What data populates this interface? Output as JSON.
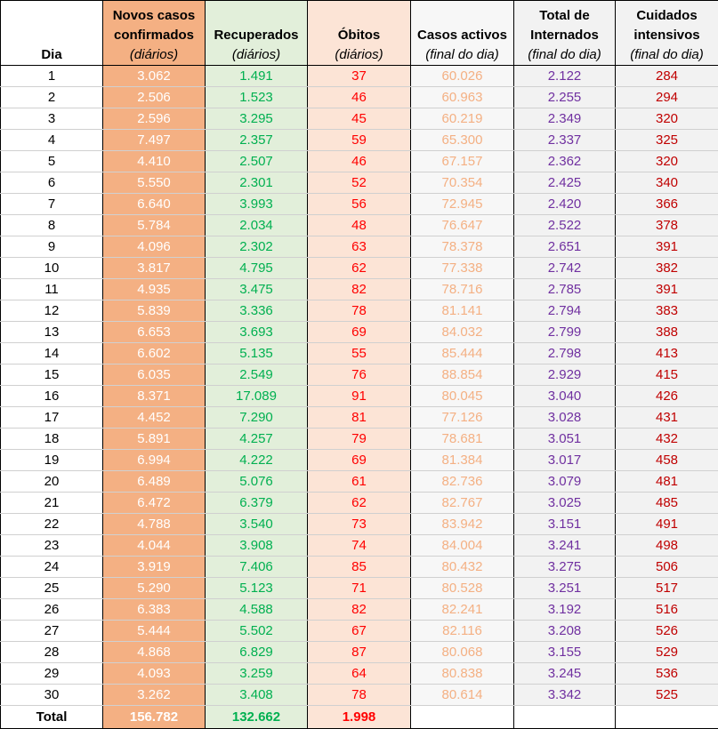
{
  "headers": {
    "dia": {
      "title": "Dia"
    },
    "novos": {
      "title_line1": "Novos casos",
      "title_line2": "confirmados",
      "subtitle": "(diários)"
    },
    "recup": {
      "title": "Recuperados",
      "subtitle": "(diários)"
    },
    "obitos": {
      "title": "Óbitos",
      "subtitle": "(diários)"
    },
    "activos": {
      "title": "Casos activos",
      "subtitle": "(final do dia)"
    },
    "intern": {
      "title_line1": "Total de",
      "title_line2": "Internados",
      "subtitle": "(final do dia)"
    },
    "cuid": {
      "title_line1": "Cuidados",
      "title_line2": "intensivos",
      "subtitle": "(final do dia)"
    }
  },
  "colors": {
    "novos_bg": "#f4b083",
    "recup_bg": "#e2efda",
    "recup_text": "#00b050",
    "obitos_bg": "#fce4d6",
    "obitos_text": "#ff0000",
    "activos_text": "#f4b083",
    "intern_text": "#7030a0",
    "cuid_text": "#c00000"
  },
  "rows": [
    {
      "dia": "1",
      "novos": "3.062",
      "recup": "1.491",
      "obitos": "37",
      "activos": "60.026",
      "intern": "2.122",
      "cuid": "284"
    },
    {
      "dia": "2",
      "novos": "2.506",
      "recup": "1.523",
      "obitos": "46",
      "activos": "60.963",
      "intern": "2.255",
      "cuid": "294"
    },
    {
      "dia": "3",
      "novos": "2.596",
      "recup": "3.295",
      "obitos": "45",
      "activos": "60.219",
      "intern": "2.349",
      "cuid": "320"
    },
    {
      "dia": "4",
      "novos": "7.497",
      "recup": "2.357",
      "obitos": "59",
      "activos": "65.300",
      "intern": "2.337",
      "cuid": "325"
    },
    {
      "dia": "5",
      "novos": "4.410",
      "recup": "2.507",
      "obitos": "46",
      "activos": "67.157",
      "intern": "2.362",
      "cuid": "320"
    },
    {
      "dia": "6",
      "novos": "5.550",
      "recup": "2.301",
      "obitos": "52",
      "activos": "70.354",
      "intern": "2.425",
      "cuid": "340"
    },
    {
      "dia": "7",
      "novos": "6.640",
      "recup": "3.993",
      "obitos": "56",
      "activos": "72.945",
      "intern": "2.420",
      "cuid": "366"
    },
    {
      "dia": "8",
      "novos": "5.784",
      "recup": "2.034",
      "obitos": "48",
      "activos": "76.647",
      "intern": "2.522",
      "cuid": "378"
    },
    {
      "dia": "9",
      "novos": "4.096",
      "recup": "2.302",
      "obitos": "63",
      "activos": "78.378",
      "intern": "2.651",
      "cuid": "391"
    },
    {
      "dia": "10",
      "novos": "3.817",
      "recup": "4.795",
      "obitos": "62",
      "activos": "77.338",
      "intern": "2.742",
      "cuid": "382"
    },
    {
      "dia": "11",
      "novos": "4.935",
      "recup": "3.475",
      "obitos": "82",
      "activos": "78.716",
      "intern": "2.785",
      "cuid": "391"
    },
    {
      "dia": "12",
      "novos": "5.839",
      "recup": "3.336",
      "obitos": "78",
      "activos": "81.141",
      "intern": "2.794",
      "cuid": "383"
    },
    {
      "dia": "13",
      "novos": "6.653",
      "recup": "3.693",
      "obitos": "69",
      "activos": "84.032",
      "intern": "2.799",
      "cuid": "388"
    },
    {
      "dia": "14",
      "novos": "6.602",
      "recup": "5.135",
      "obitos": "55",
      "activos": "85.444",
      "intern": "2.798",
      "cuid": "413"
    },
    {
      "dia": "15",
      "novos": "6.035",
      "recup": "2.549",
      "obitos": "76",
      "activos": "88.854",
      "intern": "2.929",
      "cuid": "415"
    },
    {
      "dia": "16",
      "novos": "8.371",
      "recup": "17.089",
      "obitos": "91",
      "activos": "80.045",
      "intern": "3.040",
      "cuid": "426"
    },
    {
      "dia": "17",
      "novos": "4.452",
      "recup": "7.290",
      "obitos": "81",
      "activos": "77.126",
      "intern": "3.028",
      "cuid": "431"
    },
    {
      "dia": "18",
      "novos": "5.891",
      "recup": "4.257",
      "obitos": "79",
      "activos": "78.681",
      "intern": "3.051",
      "cuid": "432"
    },
    {
      "dia": "19",
      "novos": "6.994",
      "recup": "4.222",
      "obitos": "69",
      "activos": "81.384",
      "intern": "3.017",
      "cuid": "458"
    },
    {
      "dia": "20",
      "novos": "6.489",
      "recup": "5.076",
      "obitos": "61",
      "activos": "82.736",
      "intern": "3.079",
      "cuid": "481"
    },
    {
      "dia": "21",
      "novos": "6.472",
      "recup": "6.379",
      "obitos": "62",
      "activos": "82.767",
      "intern": "3.025",
      "cuid": "485"
    },
    {
      "dia": "22",
      "novos": "4.788",
      "recup": "3.540",
      "obitos": "73",
      "activos": "83.942",
      "intern": "3.151",
      "cuid": "491"
    },
    {
      "dia": "23",
      "novos": "4.044",
      "recup": "3.908",
      "obitos": "74",
      "activos": "84.004",
      "intern": "3.241",
      "cuid": "498"
    },
    {
      "dia": "24",
      "novos": "3.919",
      "recup": "7.406",
      "obitos": "85",
      "activos": "80.432",
      "intern": "3.275",
      "cuid": "506"
    },
    {
      "dia": "25",
      "novos": "5.290",
      "recup": "5.123",
      "obitos": "71",
      "activos": "80.528",
      "intern": "3.251",
      "cuid": "517"
    },
    {
      "dia": "26",
      "novos": "6.383",
      "recup": "4.588",
      "obitos": "82",
      "activos": "82.241",
      "intern": "3.192",
      "cuid": "516"
    },
    {
      "dia": "27",
      "novos": "5.444",
      "recup": "5.502",
      "obitos": "67",
      "activos": "82.116",
      "intern": "3.208",
      "cuid": "526"
    },
    {
      "dia": "28",
      "novos": "4.868",
      "recup": "6.829",
      "obitos": "87",
      "activos": "80.068",
      "intern": "3.155",
      "cuid": "529"
    },
    {
      "dia": "29",
      "novos": "4.093",
      "recup": "3.259",
      "obitos": "64",
      "activos": "80.838",
      "intern": "3.245",
      "cuid": "536"
    },
    {
      "dia": "30",
      "novos": "3.262",
      "recup": "3.408",
      "obitos": "78",
      "activos": "80.614",
      "intern": "3.342",
      "cuid": "525"
    }
  ],
  "totals": {
    "label": "Total",
    "novos": "156.782",
    "recup": "132.662",
    "obitos": "1.998"
  }
}
